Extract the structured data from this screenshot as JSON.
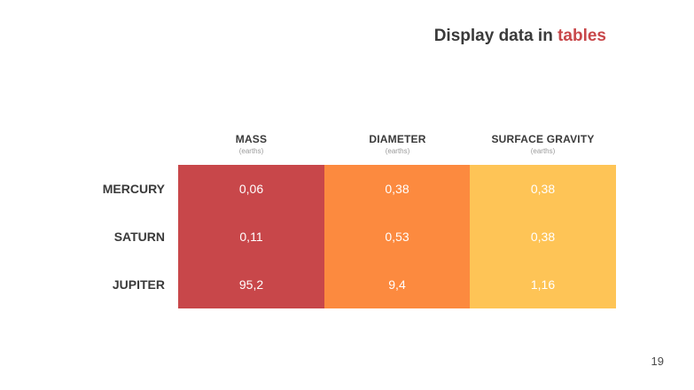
{
  "slide": {
    "title_prefix": "Display data in ",
    "title_accent": "tables",
    "page_number": "19",
    "colors": {
      "accent": "#c8474a",
      "column_1": "#c8474a",
      "column_2": "#fc8a3f",
      "column_3": "#fec456",
      "text_dark": "#3a3a3a"
    }
  },
  "table": {
    "columns": [
      {
        "label": "MASS",
        "unit": "(earths)"
      },
      {
        "label": "DIAMETER",
        "unit": "(earths)"
      },
      {
        "label": "SURFACE GRAVITY",
        "unit": "(earths)"
      }
    ],
    "rows": [
      {
        "label": "MERCURY",
        "values": [
          "0,06",
          "0,38",
          "0,38"
        ]
      },
      {
        "label": "SATURN",
        "values": [
          "0,11",
          "0,53",
          "0,38"
        ]
      },
      {
        "label": "JUPITER",
        "values": [
          "95,2",
          "9,4",
          "1,16"
        ]
      }
    ]
  }
}
